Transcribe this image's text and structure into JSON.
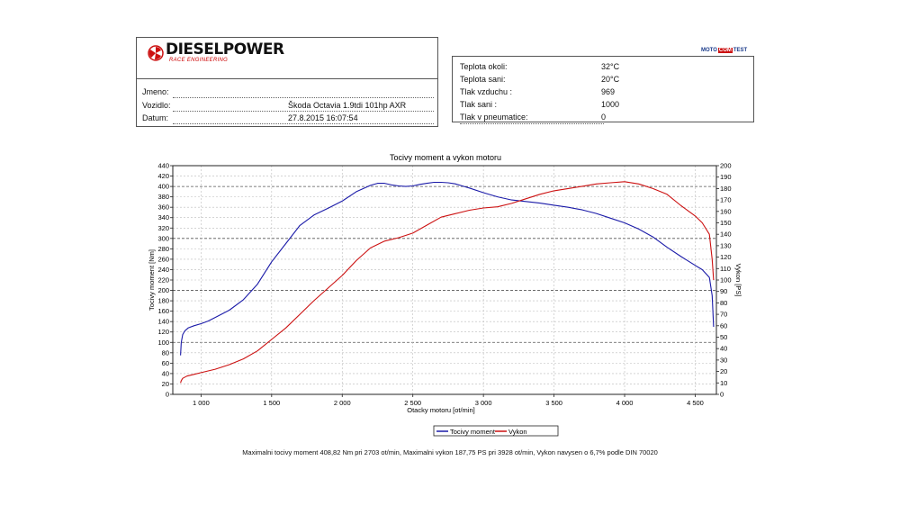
{
  "header": {
    "brand": "DIESELPOWER",
    "brand_sub": "RACE ENGINEERING",
    "badge": [
      "MOTO",
      "COM",
      "TEST"
    ],
    "colors": {
      "brand_red": "#cc1111",
      "badge_blue": "#1a3a8a",
      "badge_red": "#cc1111"
    }
  },
  "info": {
    "jmeno_label": "Jmeno:",
    "vozidlo_label": "Vozidlo:",
    "vozidlo_value": "Škoda Octavia 1.9tdi 101hp AXR",
    "datum_label": "Datum:",
    "datum_value": "27.8.2015 16:07:54"
  },
  "conditions": [
    {
      "label": "Teplota okoli:",
      "value": "32°C"
    },
    {
      "label": "Teplota sani:",
      "value": "20°C"
    },
    {
      "label": "Tlak vzduchu :",
      "value": "969"
    },
    {
      "label": "Tlak sani :",
      "value": "1000"
    },
    {
      "label": "Tlak v pneumatice:",
      "value": "0"
    }
  ],
  "chart_data": {
    "type": "line",
    "title": "Tocivy moment a vykon motoru",
    "xlabel": "Otacky motoru [ot/min]",
    "ylabel_left": "Tocivy moment [Nm]",
    "ylabel_right": "Vykon [PS]",
    "xlim": [
      800,
      4650
    ],
    "ylim_left": [
      0,
      440
    ],
    "ylim_right": [
      0,
      200
    ],
    "x_ticks": [
      1000,
      1500,
      2000,
      2500,
      3000,
      3500,
      4000,
      4500
    ],
    "x_tick_labels": [
      "1 000",
      "1 500",
      "2 000",
      "2 500",
      "3 000",
      "3 500",
      "4 000",
      "4 500"
    ],
    "y_left_ticks": [
      0,
      20,
      40,
      60,
      80,
      100,
      120,
      140,
      160,
      180,
      200,
      220,
      240,
      260,
      280,
      300,
      320,
      340,
      360,
      380,
      400,
      420,
      440
    ],
    "y_right_ticks": [
      0,
      10,
      20,
      30,
      40,
      50,
      60,
      70,
      80,
      90,
      100,
      110,
      120,
      130,
      140,
      150,
      160,
      170,
      180,
      190,
      200
    ],
    "grid": true,
    "legend_position": "bottom-center",
    "series": [
      {
        "name": "Tocivy moment",
        "axis": "left",
        "color": "#1a1aa8",
        "x": [
          855,
          860,
          870,
          885,
          910,
          950,
          1000,
          1050,
          1100,
          1200,
          1300,
          1400,
          1500,
          1600,
          1700,
          1800,
          1900,
          2000,
          2100,
          2200,
          2250,
          2300,
          2350,
          2400,
          2450,
          2500,
          2550,
          2600,
          2650,
          2700,
          2750,
          2800,
          2850,
          2900,
          3000,
          3100,
          3200,
          3300,
          3400,
          3500,
          3600,
          3700,
          3800,
          3900,
          4000,
          4100,
          4200,
          4300,
          4400,
          4500,
          4550,
          4600,
          4620,
          4630
        ],
        "y": [
          75,
          100,
          115,
          122,
          128,
          132,
          136,
          141,
          148,
          162,
          182,
          212,
          255,
          290,
          325,
          345,
          358,
          372,
          390,
          402,
          406,
          406,
          403,
          401,
          400,
          401,
          404,
          406,
          408,
          408,
          407,
          405,
          401,
          397,
          388,
          380,
          374,
          371,
          368,
          364,
          360,
          355,
          348,
          339,
          330,
          318,
          303,
          283,
          265,
          248,
          240,
          225,
          190,
          130
        ]
      },
      {
        "name": "Vykon",
        "axis": "right",
        "color": "#cc1111",
        "x": [
          855,
          860,
          870,
          900,
          950,
          1000,
          1100,
          1200,
          1300,
          1400,
          1500,
          1600,
          1700,
          1800,
          1900,
          2000,
          2100,
          2200,
          2300,
          2400,
          2500,
          2600,
          2700,
          2800,
          2900,
          3000,
          3100,
          3200,
          3300,
          3400,
          3500,
          3600,
          3700,
          3800,
          3900,
          4000,
          4100,
          4200,
          4300,
          4400,
          4500,
          4550,
          4600,
          4620,
          4630
        ],
        "y": [
          10,
          12,
          14,
          16,
          17.5,
          19,
          22,
          26,
          31,
          38,
          48,
          58,
          70,
          82,
          93,
          104,
          117,
          128,
          134,
          137,
          141,
          148,
          155,
          158,
          161,
          163,
          164,
          167,
          171,
          175,
          178,
          180,
          182,
          184,
          185,
          186,
          184,
          180,
          175,
          165,
          156,
          150,
          140,
          118,
          100
        ]
      }
    ]
  },
  "legend": {
    "torque": "Tocivy moment",
    "power": "Vykon"
  },
  "footer": "Maximalni tocivy moment 408,82 Nm pri 2703 ot/min,  Maximalni vykon 187,75 PS pri 3928 ot/min,  Vykon navysen o 6,7% podle DIN 70020"
}
